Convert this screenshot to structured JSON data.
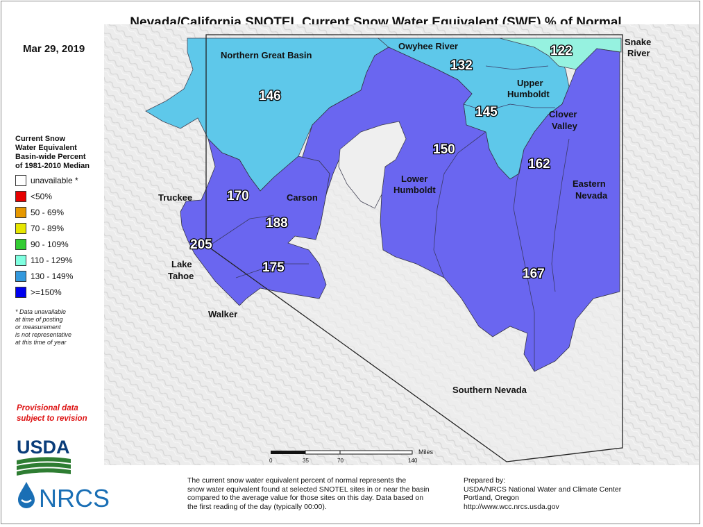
{
  "title": "Nevada/California SNOTEL Current Snow Water Equivalent (SWE) % of Normal",
  "date": "Mar 29, 2019",
  "legend": {
    "title_lines": [
      "Current Snow",
      "Water Equivalent",
      "Basin-wide Percent",
      "of 1981-2010 Median"
    ],
    "items": [
      {
        "label": "unavailable *",
        "color": "#ffffff"
      },
      {
        "label": "<50%",
        "color": "#e60000"
      },
      {
        "label": "50 - 69%",
        "color": "#e69800"
      },
      {
        "label": "70 - 89%",
        "color": "#e6e600"
      },
      {
        "label": "90 - 109%",
        "color": "#33cc33"
      },
      {
        "label": "110 - 129%",
        "color": "#7fffe0"
      },
      {
        "label": "130 - 149%",
        "color": "#3399dd"
      },
      {
        "label": ">=150%",
        "color": "#0000ee"
      }
    ],
    "note_lines": [
      "*  Data unavailable",
      "at time of posting",
      "or measurement",
      "is not representative",
      "at this time of year"
    ]
  },
  "provisional_lines": [
    "Provisional data",
    "subject to revision"
  ],
  "logos": {
    "usda": "USDA",
    "nrcs": "NRCS"
  },
  "basin_colors": {
    "band_110_129": "#96f2e0",
    "band_130_149": "#5ec8ea",
    "band_ge150": "#6a66f0",
    "unavailable": "#f0f0f0"
  },
  "basins": [
    {
      "name": "Northern Great Basin",
      "value": "146"
    },
    {
      "name": "Owyhee River",
      "value": "132"
    },
    {
      "name": "Snake River",
      "value": "122"
    },
    {
      "name": "Upper Humboldt",
      "value": "145"
    },
    {
      "name": "Clover Valley",
      "value": ""
    },
    {
      "name": "Lower Humboldt",
      "value": "150"
    },
    {
      "name": "Eastern Nevada",
      "value": "162"
    },
    {
      "name": "Truckee",
      "value": "170"
    },
    {
      "name": "Carson",
      "value": "188"
    },
    {
      "name": "Lake Tahoe",
      "value": "205"
    },
    {
      "name": "Walker",
      "value": "175"
    },
    {
      "name": "Southern Nevada",
      "value": "167"
    }
  ],
  "labels": {
    "northern_great_basin": "Northern Great Basin",
    "owyhee_river": "Owyhee River",
    "snake_river_1": "Snake",
    "snake_river_2": "River",
    "upper_humboldt_1": "Upper",
    "upper_humboldt_2": "Humboldt",
    "clover_valley_1": "Clover",
    "clover_valley_2": "Valley",
    "lower_humboldt_1": "Lower",
    "lower_humboldt_2": "Humboldt",
    "eastern_nevada_1": "Eastern",
    "eastern_nevada_2": "Nevada",
    "truckee": "Truckee",
    "carson": "Carson",
    "lake_tahoe_1": "Lake",
    "lake_tahoe_2": "Tahoe",
    "walker": "Walker",
    "southern_nevada": "Southern Nevada"
  },
  "values": {
    "ngb": "146",
    "owyhee": "132",
    "snake": "122",
    "upper_humboldt": "145",
    "lower_humboldt": "150",
    "eastern": "162",
    "truckee": "170",
    "carson": "188",
    "tahoe": "205",
    "walker": "175",
    "southern": "167"
  },
  "scale": {
    "unit": "Miles",
    "ticks": [
      "0",
      "35",
      "70",
      "140"
    ]
  },
  "footer_left_lines": [
    "The current snow water equivalent percent of normal represents the",
    "snow water equivalent found at selected SNOTEL sites in or near the basin",
    "compared to the average value for those sites on this day. Data based on",
    "the first reading of the day (typically 00:00)."
  ],
  "footer_right_lines": [
    "Prepared by:",
    "USDA/NRCS National Water and Climate Center",
    "Portland, Oregon",
    "http://www.wcc.nrcs.usda.gov"
  ]
}
